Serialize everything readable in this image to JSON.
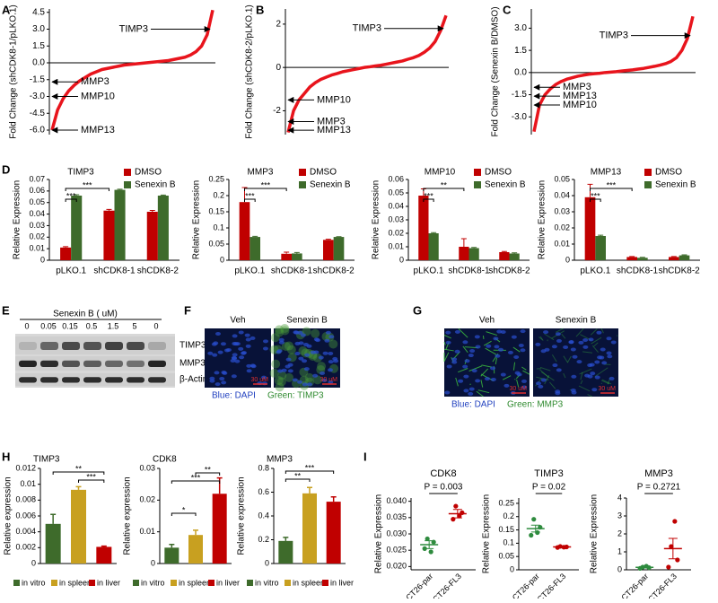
{
  "chart_data": [
    {
      "type": "curve",
      "ylabel": "Fold Change (shCDK8-1/pLKO.1)",
      "color": "#e8141c",
      "values": [
        -6.0,
        -4.2,
        -3.2,
        -2.5,
        -2.0,
        -1.6,
        -1.3,
        -1.0,
        -0.8,
        -0.6,
        -0.5,
        -0.4,
        -0.3,
        -0.2,
        -0.15,
        -0.1,
        -0.05,
        0,
        0.05,
        0.1,
        0.15,
        0.2,
        0.3,
        0.4,
        0.5,
        0.7,
        1.0,
        1.5,
        2.5,
        4.7
      ],
      "ylim": [
        -6.4,
        4.8
      ],
      "yticks": [
        {
          "value": 4.5,
          "label": "4.5"
        },
        {
          "value": 3,
          "label": "3.0"
        },
        {
          "value": 1.5,
          "label": "1.5"
        },
        {
          "value": 0,
          "label": "0.0"
        },
        {
          "value": -1.5,
          "label": "-1.5"
        },
        {
          "value": -3,
          "label": "-3.0"
        },
        {
          "value": -4.5,
          "label": "-4.5"
        },
        {
          "value": -6,
          "label": "-6.0"
        }
      ],
      "annotations": [
        {
          "text": "TIMP3",
          "value": 3
        },
        {
          "text": "MMP3",
          "value": -1.7
        },
        {
          "text": "MMP10",
          "value": -3
        },
        {
          "text": "MMP13",
          "value": -6
        }
      ]
    },
    {
      "type": "curve",
      "ylabel": "Fold Change (shCDK8-2/pLKO.1)",
      "color": "#e8141c",
      "values": [
        -3.0,
        -2.0,
        -1.5,
        -1.2,
        -0.9,
        -0.7,
        -0.55,
        -0.45,
        -0.35,
        -0.28,
        -0.2,
        -0.15,
        -0.1,
        -0.05,
        0,
        0.03,
        0.07,
        0.1,
        0.15,
        0.2,
        0.25,
        0.3,
        0.38,
        0.45,
        0.55,
        0.7,
        0.9,
        1.2,
        1.7,
        2.4
      ],
      "ylim": [
        -3.1,
        2.7
      ],
      "yticks": [
        2,
        0,
        -2
      ],
      "annotations": [
        {
          "text": "TIMP3",
          "value": 1.8
        },
        {
          "text": "MMP10",
          "value": -1.5
        },
        {
          "text": "MMP3",
          "value": -2.5
        },
        {
          "text": "MMP13",
          "value": -2.9
        }
      ]
    },
    {
      "type": "curve",
      "ylabel": "Fold Change (Senexin B/DMSO)",
      "color": "#e8141c",
      "values": [
        -4.0,
        -2.2,
        -1.5,
        -1.1,
        -0.8,
        -0.6,
        -0.45,
        -0.35,
        -0.25,
        -0.18,
        -0.12,
        -0.08,
        -0.05,
        0,
        0.03,
        0.06,
        0.1,
        0.14,
        0.18,
        0.23,
        0.28,
        0.35,
        0.42,
        0.5,
        0.6,
        0.75,
        1.0,
        1.5,
        2.3,
        3.8
      ],
      "ylim": [
        -4.2,
        4.3
      ],
      "yticks": [
        {
          "value": 3,
          "label": "3.0"
        },
        {
          "value": 1.5,
          "label": "1.5"
        },
        {
          "value": 0,
          "label": "0.0"
        },
        {
          "value": -1.5,
          "label": "-1.5"
        },
        {
          "value": -3,
          "label": "-3.0"
        }
      ],
      "annotations": [
        {
          "text": "TIMP3",
          "value": 2.5
        },
        {
          "text": "MMP3",
          "value": -1.0
        },
        {
          "text": "MMP13",
          "value": -1.6
        },
        {
          "text": "MMP10",
          "value": -2.2
        }
      ]
    },
    {
      "type": "bar",
      "title": "TIMP3",
      "ylabel": "Relative Expression",
      "categories": [
        "pLKO.1",
        "shCDK8-1",
        "shCDK8-2"
      ],
      "series": [
        {
          "name": "DMSO",
          "color": "#c00000",
          "values": [
            0.011,
            0.043,
            0.042
          ],
          "errors": [
            0.0008,
            0.001,
            0.0012
          ]
        },
        {
          "name": "Senexin B",
          "color": "#3e6b2b",
          "values": [
            0.056,
            0.061,
            0.056
          ],
          "errors": [
            0.0008,
            0.0005,
            0.0005
          ]
        }
      ],
      "ylim": [
        0,
        0.07
      ],
      "yticks": [
        0,
        0.01,
        0.02,
        0.03,
        0.04,
        0.05,
        0.06,
        0.07
      ],
      "brackets": [
        "***",
        "***"
      ]
    },
    {
      "type": "bar",
      "title": "MMP3",
      "ylabel": "Relative Expression",
      "categories": [
        "pLKO.1",
        "shCDK8-1",
        "shCDK8-2"
      ],
      "series": [
        {
          "name": "DMSO",
          "color": "#c00000",
          "values": [
            0.18,
            0.02,
            0.063
          ],
          "errors": [
            0.045,
            0.005,
            0.002
          ]
        },
        {
          "name": "Senexin B",
          "color": "#3e6b2b",
          "values": [
            0.072,
            0.021,
            0.072
          ],
          "errors": [
            0.002,
            0.003,
            0.001
          ]
        }
      ],
      "ylim": [
        0,
        0.25
      ],
      "yticks": [
        0,
        0.05,
        0.1,
        0.15,
        0.2,
        0.25
      ],
      "brackets": [
        "***",
        "***"
      ]
    },
    {
      "type": "bar",
      "title": "MMP10",
      "ylabel": "Relative Expression",
      "categories": [
        "pLKO.1",
        "shCDK8-1",
        "shCDK8-2"
      ],
      "series": [
        {
          "name": "DMSO",
          "color": "#c00000",
          "values": [
            0.048,
            0.01,
            0.006
          ],
          "errors": [
            0.005,
            0.006,
            0.0005
          ]
        },
        {
          "name": "Senexin B",
          "color": "#3e6b2b",
          "values": [
            0.02,
            0.009,
            0.005
          ],
          "errors": [
            0.0005,
            0.0005,
            0.0005
          ]
        }
      ],
      "ylim": [
        0,
        0.06
      ],
      "yticks": [
        0,
        0.01,
        0.02,
        0.03,
        0.04,
        0.05,
        0.06
      ],
      "brackets": [
        "***",
        "**"
      ]
    },
    {
      "type": "bar",
      "title": "MMP13",
      "ylabel": "Relative Expression",
      "categories": [
        "pLKO.1",
        "shCDK8-1",
        "shCDK8-2"
      ],
      "series": [
        {
          "name": "DMSO",
          "color": "#c00000",
          "values": [
            0.039,
            0.002,
            0.002
          ],
          "errors": [
            0.008,
            0.0003,
            0.0003
          ]
        },
        {
          "name": "Senexin B",
          "color": "#3e6b2b",
          "values": [
            0.015,
            0.0015,
            0.003
          ],
          "errors": [
            0.0005,
            0.0003,
            0.0003
          ]
        }
      ],
      "ylim": [
        0,
        0.05
      ],
      "yticks": [
        0,
        0.01,
        0.02,
        0.03,
        0.04,
        0.05
      ],
      "brackets": [
        "***",
        "***"
      ]
    },
    {
      "type": "colorbar",
      "title": "TIMP3",
      "ylabel": "Relative expression",
      "categories": [
        "in vitro",
        "in spleen",
        "in liver"
      ],
      "colors": [
        "#3e6b2b",
        "#c8a020",
        "#c00000"
      ],
      "values": [
        0.005,
        0.0093,
        0.0021
      ],
      "errors": [
        0.0012,
        0.0004,
        0.0001
      ],
      "ylim": [
        0,
        0.012
      ],
      "yticks": [
        0,
        0.002,
        0.004,
        0.006,
        0.008,
        0.01,
        0.012
      ],
      "brackets": [
        "**",
        "***"
      ]
    },
    {
      "type": "colorbar",
      "title": "CDK8",
      "ylabel": "Relative expression",
      "categories": [
        "in vitro",
        "in spleen",
        "in liver"
      ],
      "colors": [
        "#3e6b2b",
        "#c8a020",
        "#c00000"
      ],
      "values": [
        0.005,
        0.009,
        0.022
      ],
      "errors": [
        0.001,
        0.0015,
        0.005
      ],
      "ylim": [
        0,
        0.03
      ],
      "yticks": [
        0,
        0.01,
        0.02,
        0.03
      ],
      "brackets": [
        "*",
        "***",
        "**"
      ]
    },
    {
      "type": "colorbar",
      "title": "MMP3",
      "ylabel": "Relative expression",
      "categories": [
        "in vitro",
        "in spleen",
        "in liver"
      ],
      "colors": [
        "#3e6b2b",
        "#c8a020",
        "#c00000"
      ],
      "values": [
        0.19,
        0.59,
        0.52
      ],
      "errors": [
        0.03,
        0.05,
        0.04
      ],
      "ylim": [
        0,
        0.8
      ],
      "yticks": [
        0,
        0.2,
        0.4,
        0.6,
        0.8
      ],
      "brackets": [
        "**",
        "***"
      ]
    },
    {
      "type": "dotplot",
      "title": "CDK8",
      "ylabel": "Relative Expression",
      "annotation": "P = 0.003",
      "series": [
        {
          "name": "CT26-par",
          "color": "#2e8b3e",
          "values": [
            0.0255,
            0.0275,
            0.0285,
            0.0245
          ],
          "mean": 0.0267,
          "sem": 0.0012
        },
        {
          "name": "CT26-FL3",
          "color": "#c00000",
          "values": [
            0.0345,
            0.0365,
            0.0385,
            0.0355
          ],
          "mean": 0.0362,
          "sem": 0.0013
        }
      ],
      "ylim": [
        0.019,
        0.041
      ],
      "yticks": [
        {
          "value": 0.02,
          "label": "0.020"
        },
        {
          "value": 0.025,
          "label": "0.025"
        },
        {
          "value": 0.03,
          "label": "0.030"
        },
        {
          "value": 0.035,
          "label": "0.035"
        },
        {
          "value": 0.04,
          "label": "0.040"
        }
      ]
    },
    {
      "type": "dotplot",
      "title": "TIMP3",
      "ylabel": "Relative Expression",
      "annotation": "P = 0.02",
      "series": [
        {
          "name": "CT26-par",
          "color": "#2e8b3e",
          "values": [
            0.13,
            0.16,
            0.19,
            0.14
          ],
          "mean": 0.155,
          "sem": 0.013
        },
        {
          "name": "CT26-FL3",
          "color": "#c00000",
          "values": [
            0.084,
            0.086,
            0.088,
            0.085
          ],
          "mean": 0.086,
          "sem": 0.001
        }
      ],
      "ylim": [
        0,
        0.27
      ],
      "yticks": [
        0,
        0.05,
        0.1,
        0.15,
        0.2,
        0.25
      ]
    },
    {
      "type": "dotplot",
      "title": "MMP3",
      "ylabel": "Relative Expression",
      "annotation": "P = 0.2721",
      "series": [
        {
          "name": "CT26-par",
          "color": "#2e8b3e",
          "values": [
            0.08,
            0.12,
            0.15,
            0.2
          ],
          "mean": 0.14,
          "sem": 0.03
        },
        {
          "name": "CT26-FL3",
          "color": "#c00000",
          "values": [
            0.15,
            0.55,
            1.3,
            2.7
          ],
          "mean": 1.18,
          "sem": 0.57
        }
      ],
      "ylim": [
        0,
        4
      ],
      "yticks": [
        0,
        1,
        2,
        3,
        4
      ]
    }
  ],
  "panels": {
    "letters": [
      "A",
      "B",
      "C",
      "D",
      "E",
      "F",
      "G",
      "H",
      "I"
    ],
    "E": {
      "treatment": "Senexin B ( uM)",
      "lanes": [
        "0",
        "0.05",
        "0.15",
        "0.5",
        "1.5",
        "5",
        "0"
      ],
      "bands": [
        "TIMP3",
        "MMP3",
        "β-Actin"
      ]
    },
    "F": {
      "images": [
        "Veh",
        "Senexin B"
      ],
      "scale": "30 uM",
      "caption": [
        "Blue: DAPI",
        "Green: TIMP3"
      ]
    },
    "G": {
      "images": [
        "Veh",
        "Senexin B"
      ],
      "scale": "30 uM",
      "caption": [
        "Blue: DAPI",
        "Green: MMP3"
      ]
    }
  }
}
